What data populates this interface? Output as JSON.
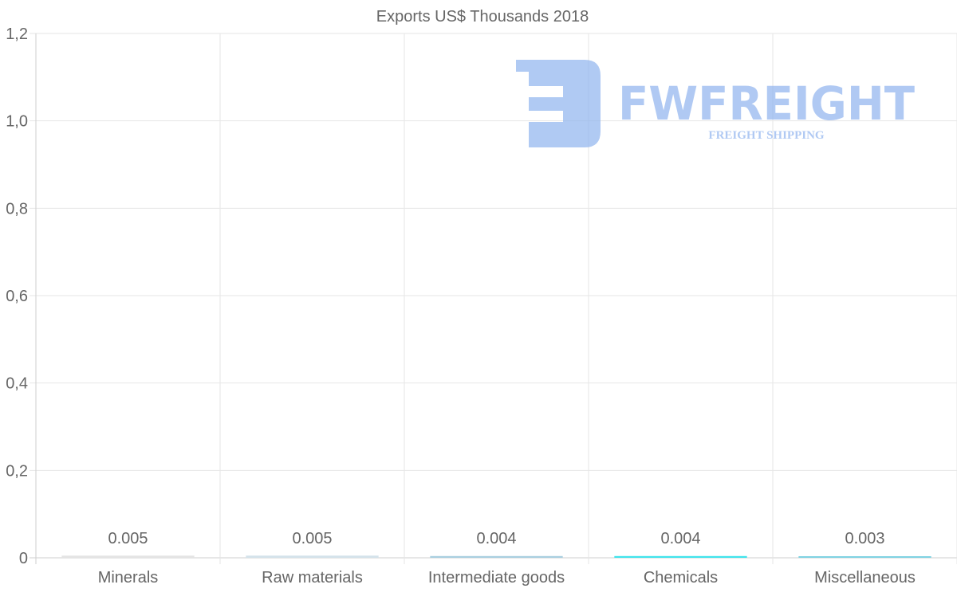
{
  "chart_data": {
    "type": "bar",
    "title": "Exports US$ Thousands 2018",
    "categories": [
      "Minerals",
      "Raw materials",
      "Intermediate goods",
      "Chemicals",
      "Miscellaneous"
    ],
    "values": [
      0.005,
      0.005,
      0.004,
      0.004,
      0.003
    ],
    "data_labels": [
      "0.005",
      "0.005",
      "0.004",
      "0.004",
      "0.003"
    ],
    "bar_colors": [
      "#e4e4e4",
      "#d4e2ea",
      "#a9cfe0",
      "#40e4ec",
      "#7fd2e2"
    ],
    "ylim": [
      0,
      1.2
    ],
    "yticks": [
      0,
      0.2,
      0.4,
      0.6,
      0.8,
      1.0,
      1.2
    ],
    "ytick_labels": [
      "0",
      "0,2",
      "0,4",
      "0,6",
      "0,8",
      "1,0",
      "1,2"
    ],
    "xlabel": "",
    "ylabel": "",
    "grid": true,
    "legend": "none"
  },
  "watermark": {
    "brand": "FWFREIGHT",
    "tagline": "FREIGHT SHIPPING",
    "color": "#8fb3ee"
  }
}
